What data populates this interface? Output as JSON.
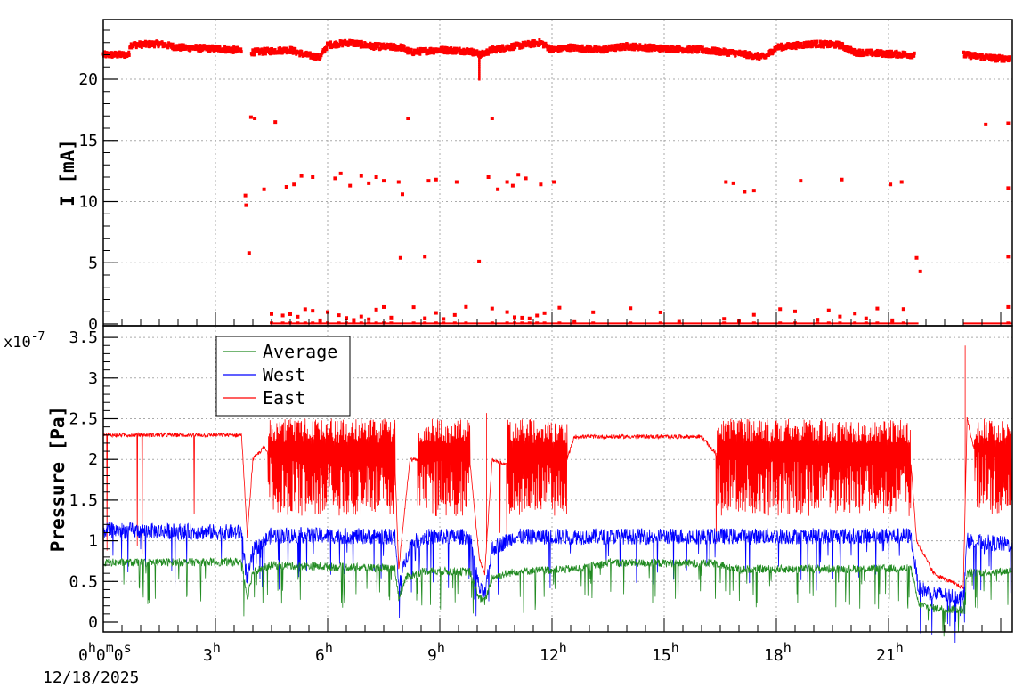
{
  "chart_data": [
    {
      "type": "scatter",
      "panel": "top",
      "ylabel": "I [mA]",
      "ylim": [
        0,
        25
      ],
      "yticks": [
        0,
        5,
        10,
        15,
        20
      ],
      "xlim_hours": [
        0,
        24.3
      ],
      "grid": true,
      "colors": {
        "current": "#ff0000"
      },
      "series": [
        {
          "band": [
            [
              0,
              22.0
            ],
            [
              0.7,
              22.0
            ],
            [
              0.7,
              22.8
            ],
            [
              1.5,
              22.9
            ],
            [
              2,
              22.6
            ],
            [
              3,
              22.5
            ],
            [
              3.9,
              22.3
            ],
            [
              3.9,
              22.2
            ],
            [
              5,
              22.4
            ],
            [
              5.4,
              22.0
            ],
            [
              5.8,
              21.8
            ],
            [
              6,
              22.8
            ],
            [
              6.6,
              23.0
            ],
            [
              7.2,
              22.7
            ],
            [
              8,
              22.6
            ],
            [
              8.2,
              22.2
            ],
            [
              9,
              22.4
            ],
            [
              9.8,
              22.3
            ],
            [
              10.1,
              22.0
            ],
            [
              10.4,
              22.4
            ],
            [
              11,
              22.7
            ],
            [
              11.7,
              23.0
            ],
            [
              12,
              22.4
            ],
            [
              12.5,
              22.6
            ],
            [
              13.3,
              22.4
            ],
            [
              14,
              22.7
            ],
            [
              15,
              22.5
            ],
            [
              16,
              22.4
            ],
            [
              17,
              22.1
            ],
            [
              17.7,
              21.8
            ],
            [
              18,
              22.6
            ],
            [
              19,
              22.9
            ],
            [
              19.7,
              22.8
            ],
            [
              20.1,
              22.2
            ],
            [
              21.6,
              22.0
            ],
            [
              23.0,
              22.0
            ],
            [
              23.9,
              21.7
            ]
          ],
          "gaps_hours": [
            [
              3.7,
              3.95
            ],
            [
              21.7,
              23.0
            ]
          ],
          "scatter_points": [
            [
              3.8,
              10.5
            ],
            [
              3.82,
              9.7
            ],
            [
              3.9,
              5.8
            ],
            [
              3.95,
              16.9
            ],
            [
              4.05,
              16.8
            ],
            [
              4.3,
              11.0
            ],
            [
              4.6,
              16.5
            ],
            [
              4.9,
              11.2
            ],
            [
              5.1,
              11.4
            ],
            [
              5.3,
              12.1
            ],
            [
              5.6,
              12.0
            ],
            [
              6.2,
              11.9
            ],
            [
              6.35,
              12.3
            ],
            [
              6.6,
              11.3
            ],
            [
              6.9,
              12.1
            ],
            [
              7.1,
              11.5
            ],
            [
              7.3,
              12.0
            ],
            [
              7.5,
              11.7
            ],
            [
              7.9,
              11.6
            ],
            [
              8.0,
              10.6
            ],
            [
              8.15,
              16.8
            ],
            [
              7.95,
              5.4
            ],
            [
              8.6,
              5.5
            ],
            [
              8.7,
              11.7
            ],
            [
              8.9,
              11.8
            ],
            [
              9.45,
              11.6
            ],
            [
              10.05,
              5.1
            ],
            [
              10.3,
              12.0
            ],
            [
              10.4,
              16.8
            ],
            [
              10.55,
              11.0
            ],
            [
              10.8,
              11.6
            ],
            [
              10.95,
              11.3
            ],
            [
              11.1,
              12.2
            ],
            [
              11.3,
              11.9
            ],
            [
              11.7,
              11.4
            ],
            [
              12.05,
              11.6
            ],
            [
              16.65,
              11.6
            ],
            [
              16.85,
              11.5
            ],
            [
              17.15,
              10.8
            ],
            [
              17.4,
              10.9
            ],
            [
              18.65,
              11.7
            ],
            [
              19.75,
              11.8
            ],
            [
              21.05,
              11.4
            ],
            [
              21.35,
              11.6
            ],
            [
              21.75,
              5.4
            ],
            [
              21.85,
              4.3
            ],
            [
              23.6,
              16.3
            ],
            [
              24.2,
              16.4
            ],
            [
              24.2,
              11.1
            ],
            [
              24.2,
              5.5
            ]
          ],
          "near_zero_hours": [
            4.5,
            4.8,
            5.0,
            5.2,
            5.4,
            5.6,
            5.8,
            6.0,
            6.3,
            6.5,
            6.7,
            6.9,
            7.1,
            7.3,
            7.5,
            7.7,
            8.3,
            8.6,
            8.9,
            9.1,
            9.4,
            9.7,
            10.4,
            10.8,
            11.0,
            11.2,
            11.4,
            11.6,
            11.8,
            12.2,
            12.6,
            13.1,
            14.1,
            14.9,
            15.4,
            16.6,
            17.0,
            17.4,
            18.1,
            18.5,
            19.1,
            19.4,
            19.7,
            20.1,
            20.4,
            20.7,
            21.1,
            21.4,
            24.2
          ]
        }
      ]
    },
    {
      "type": "line",
      "panel": "bottom",
      "ylabel": "Pressure [Pa]",
      "exponent_label": "x10",
      "exponent_power": "-7",
      "ylim": [
        0,
        3.6
      ],
      "yticks": [
        "0",
        "0.5",
        "1",
        "1.5",
        "2",
        "2.5",
        "3",
        "3.5"
      ],
      "xlim_hours": [
        0,
        24.3
      ],
      "grid": true,
      "legend_position": "top-left",
      "x_tick_labels": [
        {
          "hours": 0,
          "text": "0",
          "sup": "h",
          "extra": "0",
          "sup2": "m",
          "extra2": "0",
          "sup3": "s"
        },
        {
          "hours": 3,
          "text": "3",
          "sup": "h"
        },
        {
          "hours": 6,
          "text": "6",
          "sup": "h"
        },
        {
          "hours": 9,
          "text": "9",
          "sup": "h"
        },
        {
          "hours": 12,
          "text": "12",
          "sup": "h"
        },
        {
          "hours": 15,
          "text": "15",
          "sup": "h"
        },
        {
          "hours": 18,
          "text": "18",
          "sup": "h"
        },
        {
          "hours": 21,
          "text": "21",
          "sup": "h"
        }
      ],
      "x_date_label": "12/18/2025",
      "series": [
        {
          "name": "Average",
          "color": "#228b22",
          "base": [
            [
              0,
              0.73
            ],
            [
              3.7,
              0.74
            ],
            [
              3.85,
              0.3
            ],
            [
              4.0,
              0.62
            ],
            [
              4.5,
              0.7
            ],
            [
              7.8,
              0.66
            ],
            [
              7.9,
              0.3
            ],
            [
              8.1,
              0.55
            ],
            [
              8.6,
              0.63
            ],
            [
              9.8,
              0.62
            ],
            [
              10.05,
              0.3
            ],
            [
              10.2,
              0.25
            ],
            [
              10.4,
              0.55
            ],
            [
              11.0,
              0.62
            ],
            [
              12.8,
              0.66
            ],
            [
              13.5,
              0.73
            ],
            [
              16.4,
              0.72
            ],
            [
              17.0,
              0.65
            ],
            [
              21.6,
              0.66
            ],
            [
              21.8,
              0.22
            ],
            [
              22.2,
              0.17
            ],
            [
              23.0,
              0.15
            ],
            [
              23.1,
              0.6
            ],
            [
              24.3,
              0.63
            ]
          ],
          "noise": 0.05,
          "spike_prob": 0.05,
          "spike_down": [
            0.15,
            0.5
          ]
        },
        {
          "name": "West",
          "color": "#0000ff",
          "base": [
            [
              0,
              1.13
            ],
            [
              3.7,
              1.1
            ],
            [
              3.85,
              0.5
            ],
            [
              4.0,
              0.87
            ],
            [
              4.5,
              1.07
            ],
            [
              7.8,
              1.05
            ],
            [
              7.9,
              0.45
            ],
            [
              8.2,
              0.95
            ],
            [
              8.6,
              1.05
            ],
            [
              9.8,
              1.05
            ],
            [
              10.05,
              0.42
            ],
            [
              10.2,
              0.32
            ],
            [
              10.4,
              0.9
            ],
            [
              11.0,
              1.05
            ],
            [
              21.6,
              1.06
            ],
            [
              21.8,
              0.42
            ],
            [
              22.2,
              0.35
            ],
            [
              23.0,
              0.3
            ],
            [
              23.1,
              1.0
            ],
            [
              24.3,
              0.95
            ]
          ],
          "noise": 0.1,
          "spike_prob": 0.04,
          "spike_down": [
            0.2,
            0.6
          ]
        },
        {
          "name": "East",
          "color": "#ff0000",
          "base": [
            [
              0,
              2.3
            ],
            [
              3.7,
              2.3
            ],
            [
              3.85,
              1.05
            ],
            [
              4.0,
              2.0
            ],
            [
              4.3,
              2.15
            ],
            [
              4.5,
              2.0
            ],
            [
              7.8,
              1.95
            ],
            [
              7.9,
              0.65
            ],
            [
              8.2,
              2.0
            ],
            [
              8.6,
              2.0
            ],
            [
              9.8,
              2.0
            ],
            [
              10.05,
              0.8
            ],
            [
              10.2,
              0.6
            ],
            [
              10.4,
              2.0
            ],
            [
              11.0,
              1.9
            ],
            [
              12.4,
              2.0
            ],
            [
              12.6,
              2.28
            ],
            [
              16.0,
              2.28
            ],
            [
              16.5,
              2.0
            ],
            [
              21.6,
              1.95
            ],
            [
              21.75,
              1.0
            ],
            [
              22.2,
              0.6
            ],
            [
              23.0,
              0.42
            ],
            [
              23.1,
              2.5
            ],
            [
              23.3,
              2.1
            ],
            [
              24.3,
              2.0
            ]
          ],
          "noise_quiet": 0.05,
          "noise_busy": 0.85,
          "busy_ranges_hours": [
            [
              4.4,
              7.8
            ],
            [
              8.4,
              9.8
            ],
            [
              10.8,
              12.4
            ],
            [
              16.4,
              21.6
            ],
            [
              23.3,
              24.3
            ]
          ],
          "peaks": [
            [
              10.25,
              2.57
            ],
            [
              23.05,
              3.4
            ]
          ]
        }
      ]
    }
  ]
}
